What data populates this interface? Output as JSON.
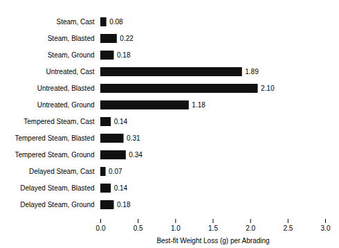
{
  "chart_data": {
    "type": "bar",
    "orientation": "horizontal",
    "categories": [
      "Steam, Cast",
      "Steam, Blasted",
      "Steam, Ground",
      "Untreated, Cast",
      "Untreated, Blasted",
      "Untreated, Ground",
      "Tempered Steam, Cast",
      "Tempered Steam, Blasted",
      "Tempered Steam, Ground",
      "Delayed Steam, Cast",
      "Delayed Steam, Blasted",
      "Delayed Steam, Ground"
    ],
    "values": [
      0.08,
      0.22,
      0.18,
      1.89,
      2.1,
      1.18,
      0.14,
      0.31,
      0.34,
      0.07,
      0.14,
      0.18
    ],
    "value_labels": [
      "0.08",
      "0.22",
      "0.18",
      "1.89",
      "2.10",
      "1.18",
      "0.14",
      "0.31",
      "0.34",
      "0.07",
      "0.14",
      "0.18"
    ],
    "data_labels": true,
    "color": "#111111",
    "xlabel": "Best-fit Weight Loss (g) per Abrading",
    "xlim": [
      0.0,
      3.0
    ],
    "xticks": [
      {
        "value": 0,
        "label": "0.0"
      },
      0.5,
      {
        "value": 1,
        "label": "1.0"
      },
      1.5,
      {
        "value": 2,
        "label": "2.0"
      },
      2.5,
      {
        "value": 3,
        "label": "3.0"
      }
    ],
    "grid": false
  }
}
